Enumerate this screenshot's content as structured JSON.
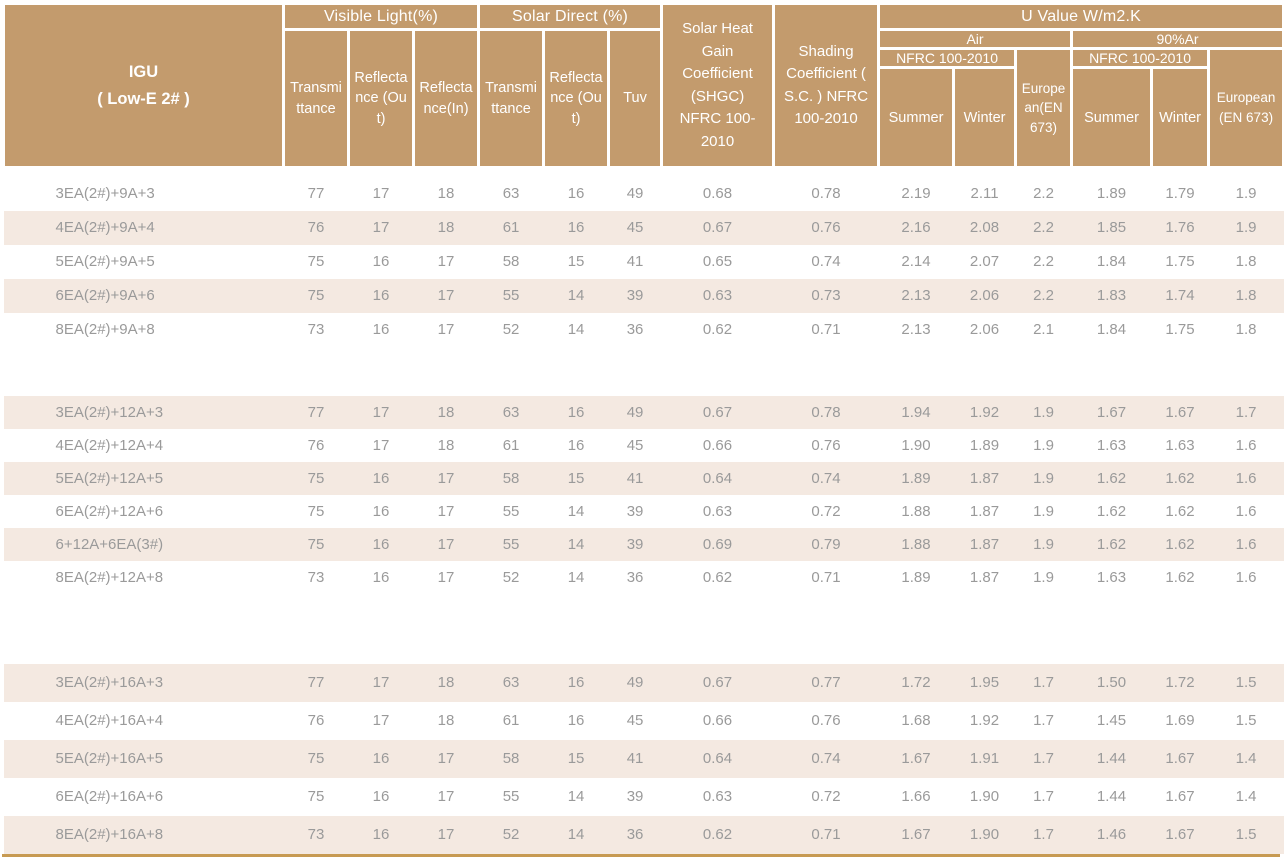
{
  "header": {
    "igu_line1": "IGU",
    "igu_line2": "( Low-E 2# )",
    "visible_light": "Visible Light(%)",
    "solar_direct": "Solar  Direct (%)",
    "transmittance": "Transmittance",
    "reflectance_out": "Reflectance (Out)",
    "reflectance_in": "Reflectance(In)",
    "tuv": "Tuv",
    "shgc": "Solar Heat Gain Coefficient (SHGC) NFRC 100-2010",
    "shading": "Shading Coefficient ( S.C. ) NFRC 100-2010",
    "u_value": "U Value W/m2.K",
    "air": "Air",
    "argon": "90%Ar",
    "nfrc": "NFRC 100-2010",
    "summer": "Summer",
    "winter": "Winter",
    "european_air": "European(EN 673)",
    "european_argon": "European (EN 673)"
  },
  "colors": {
    "header_bg": "#C39B6D",
    "header_text": "#FFFFFF",
    "stripe_bg": "#F4E9E1",
    "cell_text": "#9A9A9A",
    "bottom_line": "#C79A52"
  },
  "chart_data": {
    "type": "table",
    "title": "IGU ( Low-E 2# ) performance data",
    "groups": [
      {
        "rows": [
          [
            "3EA(2#)+9A+3",
            "77",
            "17",
            "18",
            "63",
            "16",
            "49",
            "0.68",
            "0.78",
            "2.19",
            "2.11",
            "2.2",
            "1.89",
            "1.79",
            "1.9"
          ],
          [
            "4EA(2#)+9A+4",
            "76",
            "17",
            "18",
            "61",
            "16",
            "45",
            "0.67",
            "0.76",
            "2.16",
            "2.08",
            "2.2",
            "1.85",
            "1.76",
            "1.9"
          ],
          [
            "5EA(2#)+9A+5",
            "75",
            "16",
            "17",
            "58",
            "15",
            "41",
            "0.65",
            "0.74",
            "2.14",
            "2.07",
            "2.2",
            "1.84",
            "1.75",
            "1.8"
          ],
          [
            "6EA(2#)+9A+6",
            "75",
            "16",
            "17",
            "55",
            "14",
            "39",
            "0.63",
            "0.73",
            "2.13",
            "2.06",
            "2.2",
            "1.83",
            "1.74",
            "1.8"
          ],
          [
            "8EA(2#)+9A+8",
            "73",
            "16",
            "17",
            "52",
            "14",
            "36",
            "0.62",
            "0.71",
            "2.13",
            "2.06",
            "2.1",
            "1.84",
            "1.75",
            "1.8"
          ]
        ]
      },
      {
        "rows": [
          [
            "3EA(2#)+12A+3",
            "77",
            "17",
            "18",
            "63",
            "16",
            "49",
            "0.67",
            "0.78",
            "1.94",
            "1.92",
            "1.9",
            "1.67",
            "1.67",
            "1.7"
          ],
          [
            "4EA(2#)+12A+4",
            "76",
            "17",
            "18",
            "61",
            "16",
            "45",
            "0.66",
            "0.76",
            "1.90",
            "1.89",
            "1.9",
            "1.63",
            "1.63",
            "1.6"
          ],
          [
            "5EA(2#)+12A+5",
            "75",
            "16",
            "17",
            "58",
            "15",
            "41",
            "0.64",
            "0.74",
            "1.89",
            "1.87",
            "1.9",
            "1.62",
            "1.62",
            "1.6"
          ],
          [
            "6EA(2#)+12A+6",
            "75",
            "16",
            "17",
            "55",
            "14",
            "39",
            "0.63",
            "0.72",
            "1.88",
            "1.87",
            "1.9",
            "1.62",
            "1.62",
            "1.6"
          ],
          [
            "6+12A+6EA(3#)",
            "75",
            "16",
            "17",
            "55",
            "14",
            "39",
            "0.69",
            "0.79",
            "1.88",
            "1.87",
            "1.9",
            "1.62",
            "1.62",
            "1.6"
          ],
          [
            "8EA(2#)+12A+8",
            "73",
            "16",
            "17",
            "52",
            "14",
            "36",
            "0.62",
            "0.71",
            "1.89",
            "1.87",
            "1.9",
            "1.63",
            "1.62",
            "1.6"
          ]
        ]
      },
      {
        "rows": [
          [
            "3EA(2#)+16A+3",
            "77",
            "17",
            "18",
            "63",
            "16",
            "49",
            "0.67",
            "0.77",
            "1.72",
            "1.95",
            "1.7",
            "1.50",
            "1.72",
            "1.5"
          ],
          [
            "4EA(2#)+16A+4",
            "76",
            "17",
            "18",
            "61",
            "16",
            "45",
            "0.66",
            "0.76",
            "1.68",
            "1.92",
            "1.7",
            "1.45",
            "1.69",
            "1.5"
          ],
          [
            "5EA(2#)+16A+5",
            "75",
            "16",
            "17",
            "58",
            "15",
            "41",
            "0.64",
            "0.74",
            "1.67",
            "1.91",
            "1.7",
            "1.44",
            "1.67",
            "1.4"
          ],
          [
            "6EA(2#)+16A+6",
            "75",
            "16",
            "17",
            "55",
            "14",
            "39",
            "0.63",
            "0.72",
            "1.66",
            "1.90",
            "1.7",
            "1.44",
            "1.67",
            "1.4"
          ],
          [
            "8EA(2#)+16A+8",
            "73",
            "16",
            "17",
            "52",
            "14",
            "36",
            "0.62",
            "0.71",
            "1.67",
            "1.90",
            "1.7",
            "1.46",
            "1.67",
            "1.5"
          ]
        ]
      }
    ]
  }
}
